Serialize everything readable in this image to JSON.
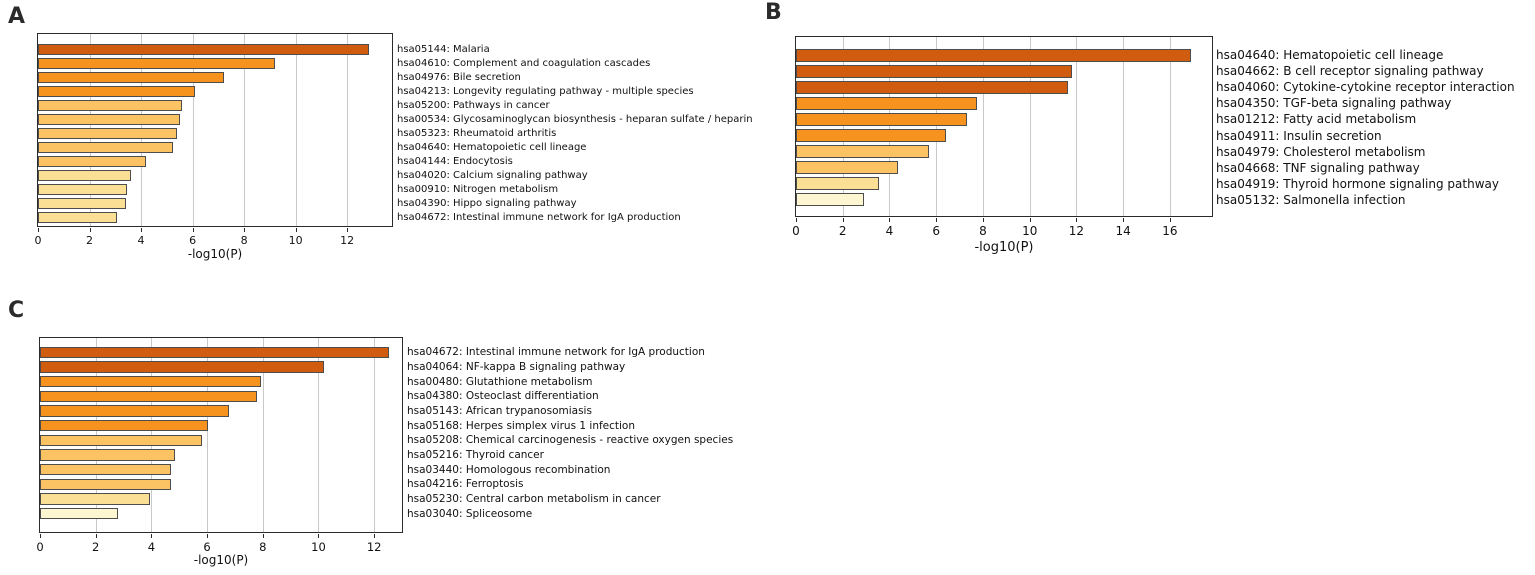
{
  "palette": {
    "darkOrange": "#d05d0f",
    "orange": "#f6921e",
    "amber": "#fbc364",
    "paleYellow": "#fbdf94",
    "cream": "#fdf6d0"
  },
  "chart_data": [
    {
      "panel_letter": "A",
      "type": "bar",
      "orientation": "horizontal",
      "title": "",
      "xlabel": "-log10(P)",
      "axis": {
        "min": 0,
        "max": 13.74,
        "ticks": [
          0,
          2,
          4,
          6,
          8,
          10,
          12
        ],
        "grid": true
      },
      "categories": [
        "hsa05144: Malaria",
        "hsa04610: Complement and coagulation cascades",
        "hsa04976: Bile secretion",
        "hsa04213: Longevity regulating pathway - multiple species",
        "hsa05200: Pathways in cancer",
        "hsa00534: Glycosaminoglycan biosynthesis - heparan sulfate / heparin",
        "hsa05323: Rheumatoid arthritis",
        "hsa04640: Hematopoietic cell lineage",
        "hsa04144: Endocytosis",
        "hsa04020: Calcium signaling pathway",
        "hsa00910: Nitrogen metabolism",
        "hsa04390: Hippo signaling pathway",
        "hsa04672: Intestinal immune network for IgA production"
      ],
      "values": [
        12.85,
        9.2,
        7.2,
        6.1,
        5.6,
        5.5,
        5.4,
        5.25,
        4.2,
        3.6,
        3.45,
        3.4,
        3.05
      ],
      "colors": [
        "darkOrange",
        "orange",
        "orange",
        "orange",
        "amber",
        "amber",
        "amber",
        "amber",
        "amber",
        "paleYellow",
        "paleYellow",
        "paleYellow",
        "paleYellow"
      ]
    },
    {
      "panel_letter": "B",
      "type": "bar",
      "orientation": "horizontal",
      "title": "",
      "xlabel": "-log10(P)",
      "axis": {
        "min": 0,
        "max": 17.8,
        "ticks": [
          0,
          2,
          4,
          6,
          8,
          10,
          12,
          14,
          16
        ],
        "grid": true
      },
      "categories": [
        "hsa04640: Hematopoietic cell lineage",
        "hsa04662: B cell receptor signaling pathway",
        "hsa04060: Cytokine-cytokine receptor interaction",
        "hsa04350: TGF-beta signaling pathway",
        "hsa01212: Fatty acid metabolism",
        "hsa04911: Insulin secretion",
        "hsa04979: Cholesterol metabolism",
        "hsa04668: TNF signaling pathway",
        "hsa04919: Thyroid hormone signaling pathway",
        "hsa05132: Salmonella infection"
      ],
      "values": [
        16.9,
        11.8,
        11.65,
        7.75,
        7.3,
        6.4,
        5.7,
        4.35,
        3.55,
        2.9
      ],
      "colors": [
        "darkOrange",
        "darkOrange",
        "darkOrange",
        "orange",
        "orange",
        "orange",
        "amber",
        "amber",
        "paleYellow",
        "cream"
      ]
    },
    {
      "panel_letter": "C",
      "type": "bar",
      "orientation": "horizontal",
      "title": "",
      "xlabel": "-log10(P)",
      "axis": {
        "min": 0,
        "max": 13.0,
        "ticks": [
          0,
          2,
          4,
          6,
          8,
          10,
          12
        ],
        "grid": true
      },
      "categories": [
        "hsa04672: Intestinal immune network for IgA production",
        "hsa04064: NF-kappa B signaling pathway",
        "hsa00480: Glutathione metabolism",
        "hsa04380: Osteoclast differentiation",
        "hsa05143: African trypanosomiasis",
        "hsa05168: Herpes simplex virus 1 infection",
        "hsa05208: Chemical carcinogenesis - reactive oxygen species",
        "hsa05216: Thyroid cancer",
        "hsa03440: Homologous recombination",
        "hsa04216: Ferroptosis",
        "hsa05230: Central carbon metabolism in cancer",
        "hsa03040: Spliceosome"
      ],
      "values": [
        12.55,
        10.2,
        7.95,
        7.8,
        6.8,
        6.05,
        5.8,
        4.85,
        4.7,
        4.7,
        3.95,
        2.8
      ],
      "colors": [
        "darkOrange",
        "darkOrange",
        "orange",
        "orange",
        "orange",
        "orange",
        "amber",
        "amber",
        "amber",
        "amber",
        "paleYellow",
        "cream"
      ]
    }
  ]
}
